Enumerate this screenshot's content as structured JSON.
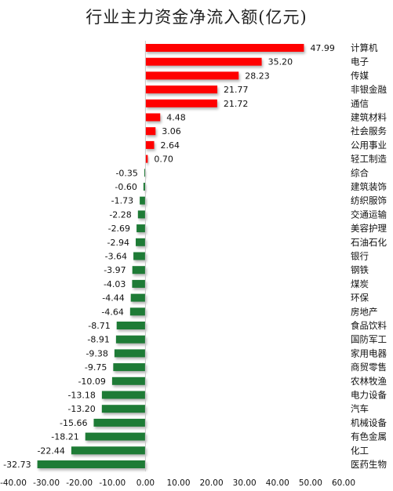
{
  "chart_data": {
    "type": "bar",
    "orientation": "horizontal",
    "title": "行业主力资金净流入额(亿元)",
    "categories": [
      "计算机",
      "电子",
      "传媒",
      "非银金融",
      "通信",
      "建筑材料",
      "社会服务",
      "公用事业",
      "轻工制造",
      "综合",
      "建筑装饰",
      "纺织服饰",
      "交通运输",
      "美容护理",
      "石油石化",
      "银行",
      "钢铁",
      "煤炭",
      "环保",
      "房地产",
      "食品饮料",
      "国防军工",
      "家用电器",
      "商贸零售",
      "农林牧渔",
      "电力设备",
      "汽车",
      "机械设备",
      "有色金属",
      "化工",
      "医药生物"
    ],
    "values": [
      47.99,
      35.2,
      28.23,
      21.77,
      21.72,
      4.48,
      3.06,
      2.64,
      0.7,
      -0.35,
      -0.6,
      -1.73,
      -2.28,
      -2.69,
      -2.94,
      -3.64,
      -3.97,
      -4.03,
      -4.44,
      -4.64,
      -8.71,
      -8.91,
      -9.38,
      -9.75,
      -10.09,
      -13.18,
      -13.2,
      -15.66,
      -18.21,
      -22.44,
      -32.73
    ],
    "value_labels": [
      "47.99",
      "35.20",
      "28.23",
      "21.77",
      "21.72",
      "4.48",
      "3.06",
      "2.64",
      "0.70",
      "-0.35",
      "-0.60",
      "-1.73",
      "-2.28",
      "-2.69",
      "-2.94",
      "-3.64",
      "-3.97",
      "-4.03",
      "-4.44",
      "-4.64",
      "-8.71",
      "-8.91",
      "-9.38",
      "-9.75",
      "-10.09",
      "-13.18",
      "-13.20",
      "-15.66",
      "-18.21",
      "-22.44",
      "-32.73"
    ],
    "xlim": [
      -40,
      60
    ],
    "xticks": [
      -40,
      -30,
      -20,
      -10,
      0,
      10,
      20,
      30,
      40,
      50,
      60
    ],
    "xtick_labels": [
      "-40.00",
      "-30.00",
      "-20.00",
      "-10.00",
      "0.00",
      "10.00",
      "20.00",
      "30.00",
      "40.00",
      "50.00",
      "60.00"
    ],
    "grid": false,
    "colors": {
      "positive": "#ff0000",
      "negative": "#1e7b36",
      "shadow": "#9a9a9a"
    }
  }
}
